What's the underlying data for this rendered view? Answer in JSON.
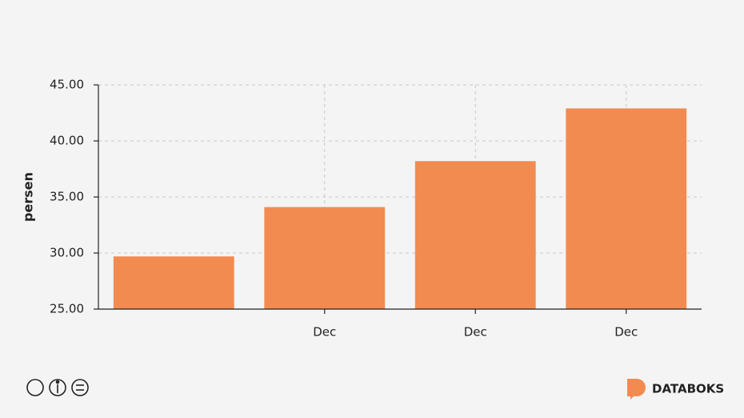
{
  "chart_data": {
    "type": "bar",
    "y_label": "persen",
    "categories": [
      null,
      "Dec",
      "Dec",
      "Dec"
    ],
    "values": [
      29.7,
      34.1,
      38.2,
      42.9
    ],
    "color": "#f28b50",
    "ylim": [
      25,
      45
    ],
    "yticks": [
      {
        "value": 25,
        "label": "25.00"
      },
      {
        "value": 30,
        "label": "30.00"
      },
      {
        "value": 35,
        "label": "35.00"
      },
      {
        "value": 40,
        "label": "40.00"
      },
      {
        "value": 45,
        "label": "45.00"
      }
    ],
    "grid": true
  },
  "brand": "DATABOKS"
}
